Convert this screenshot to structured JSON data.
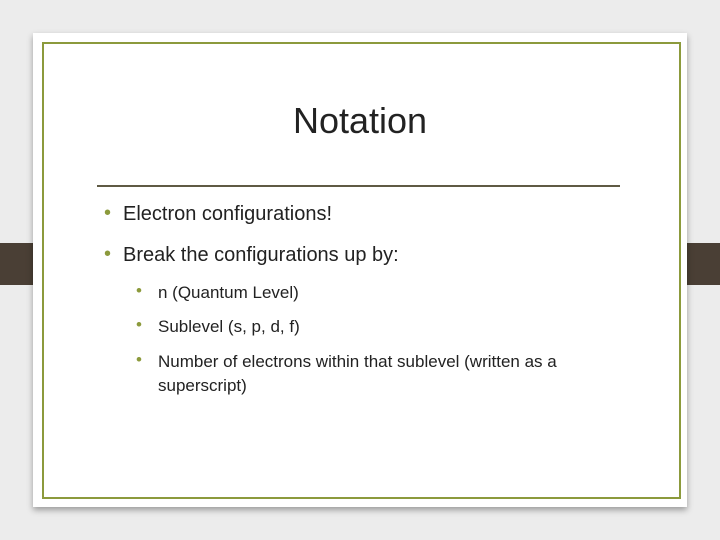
{
  "title": "Notation",
  "bullets": [
    {
      "text": "Electron configurations!"
    },
    {
      "text": "Break the configurations up by:",
      "items": [
        "n (Quantum Level)",
        "Sublevel (s, p, d, f)",
        "Number of electrons within that sublevel (written as a superscript)"
      ]
    }
  ]
}
